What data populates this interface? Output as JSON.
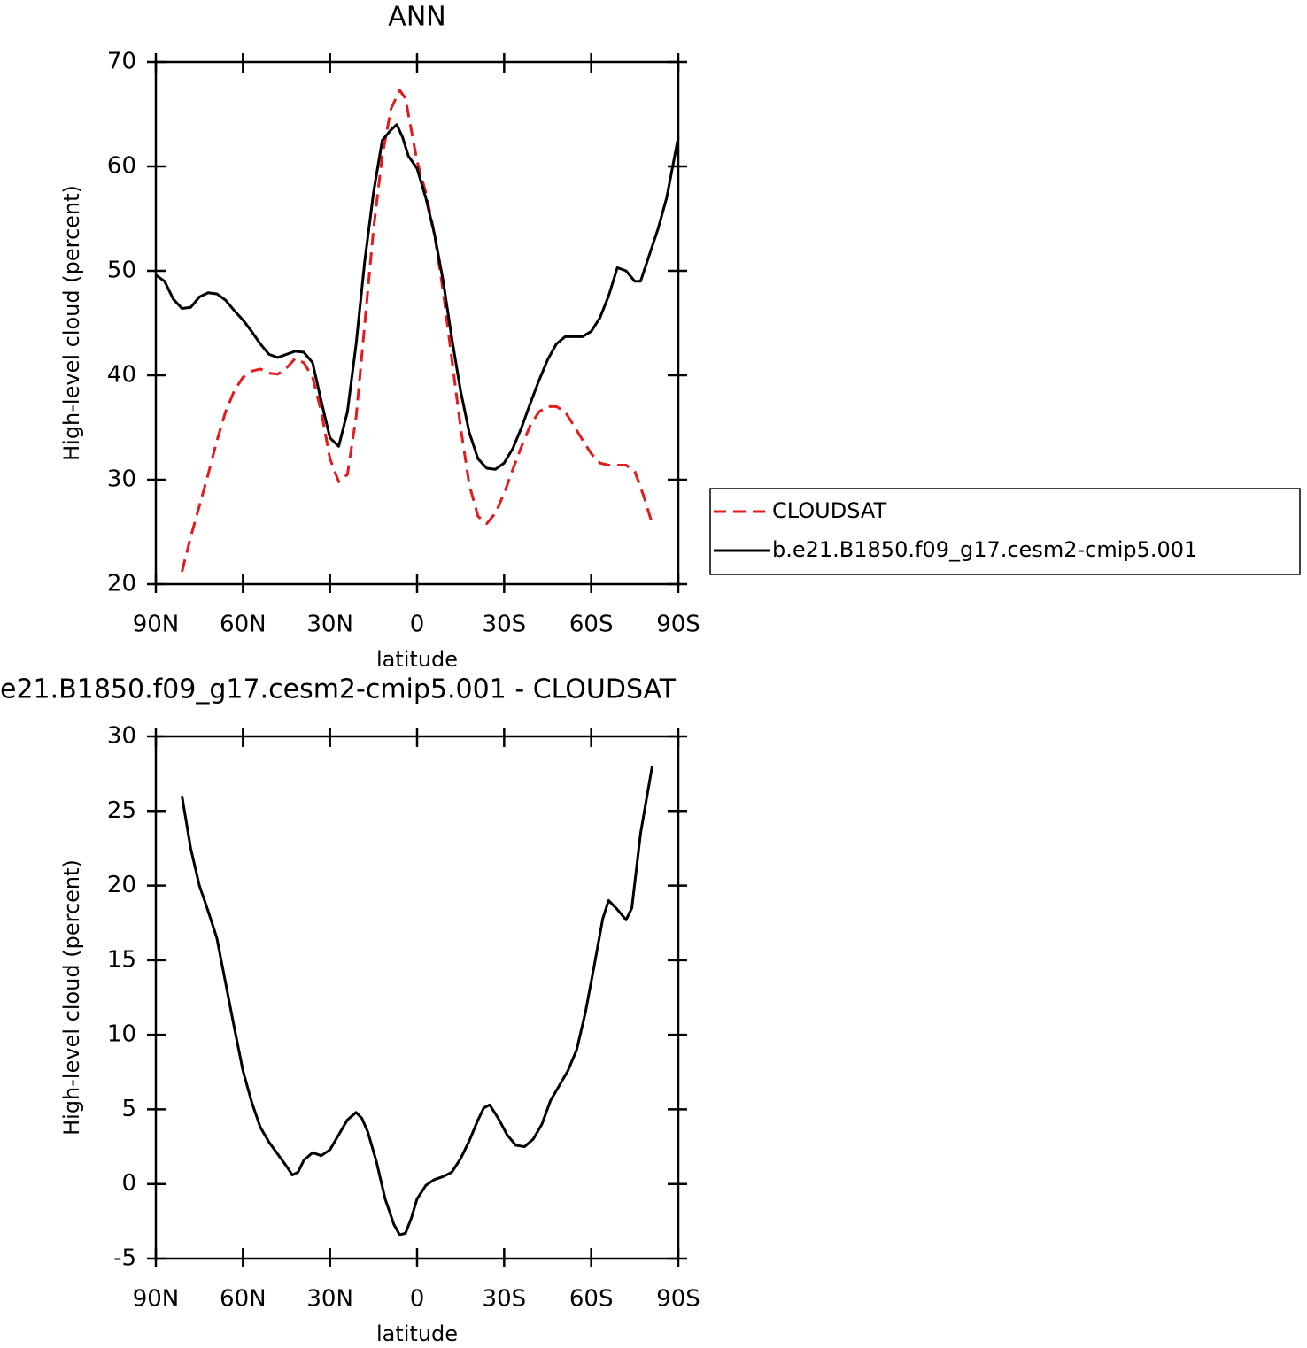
{
  "chart_data": [
    {
      "type": "line",
      "title": "ANN",
      "xlabel": "latitude",
      "ylabel": "High-level cloud (percent)",
      "xlim": [
        90,
        -90
      ],
      "xticks": [
        {
          "value": 90,
          "label": "90N"
        },
        {
          "value": 60,
          "label": "60N"
        },
        {
          "value": 30,
          "label": "30N"
        },
        0,
        {
          "value": -30,
          "label": "30S"
        },
        {
          "value": -60,
          "label": "60S"
        },
        {
          "value": -90,
          "label": "90S"
        }
      ],
      "ylim": [
        20,
        70
      ],
      "yticks": [
        20,
        30,
        40,
        50,
        60,
        70
      ],
      "legend": "outside-right",
      "series": [
        {
          "name": "CLOUDSAT",
          "color": "#e41a1c",
          "linestyle": "dashed",
          "x": [
            81,
            78,
            75,
            72,
            69,
            66,
            63,
            60,
            57,
            54,
            51,
            48,
            45,
            42,
            39,
            36,
            33,
            30,
            27,
            24,
            21,
            18,
            15,
            12,
            9,
            6,
            4,
            2,
            0,
            -3,
            -6,
            -9,
            -12,
            -15,
            -18,
            -21,
            -24,
            -27,
            -30,
            -33,
            -36,
            -39,
            -42,
            -45,
            -48,
            -51,
            -54,
            -57,
            -60,
            -63,
            -66,
            -69,
            -72,
            -75,
            -78,
            -81
          ],
          "values": [
            21.2,
            24.5,
            27.5,
            30.5,
            33.7,
            36.5,
            38.5,
            39.8,
            40.4,
            40.6,
            40.2,
            40.1,
            40.7,
            41.6,
            41.2,
            39.8,
            36.5,
            32.0,
            29.8,
            30.5,
            36.0,
            45.0,
            54.0,
            61.0,
            65.5,
            67.3,
            66.5,
            63.5,
            60.5,
            57.5,
            53.5,
            48.0,
            41.5,
            35.0,
            29.5,
            26.5,
            25.8,
            26.8,
            28.7,
            31.0,
            33.2,
            35.2,
            36.5,
            37.0,
            37.0,
            36.5,
            35.2,
            33.8,
            32.5,
            31.6,
            31.4,
            31.4,
            31.4,
            30.8,
            28.5,
            25.8
          ]
        },
        {
          "name": "b.e21.B1850.f09_g17.cesm2-cmip5.001",
          "color": "#000000",
          "linestyle": "solid",
          "x": [
            90,
            87,
            84,
            81,
            78,
            75,
            72,
            69,
            66,
            63,
            60,
            57,
            54,
            51,
            48,
            45,
            42,
            39,
            36,
            33,
            30,
            27,
            24,
            21,
            18,
            15,
            12,
            9,
            7,
            5,
            3,
            0,
            -3,
            -6,
            -9,
            -12,
            -15,
            -18,
            -21,
            -24,
            -27,
            -30,
            -33,
            -36,
            -39,
            -42,
            -45,
            -48,
            -51,
            -54,
            -57,
            -60,
            -63,
            -66,
            -69,
            -72,
            -75,
            -77,
            -80,
            -83,
            -86,
            -90
          ],
          "values": [
            49.6,
            49.0,
            47.3,
            46.4,
            46.5,
            47.5,
            47.9,
            47.8,
            47.2,
            46.2,
            45.3,
            44.2,
            43.0,
            42.0,
            41.7,
            42.0,
            42.3,
            42.2,
            41.2,
            37.5,
            34.0,
            33.2,
            36.5,
            43.0,
            51.0,
            57.5,
            62.5,
            63.5,
            64.0,
            62.8,
            61.0,
            59.8,
            57.0,
            53.5,
            49.0,
            43.5,
            38.5,
            34.5,
            32.0,
            31.1,
            31.0,
            31.6,
            33.0,
            35.0,
            37.3,
            39.5,
            41.5,
            43.0,
            43.7,
            43.7,
            43.7,
            44.2,
            45.5,
            47.6,
            50.3,
            50.0,
            49.0,
            49.0,
            51.5,
            54.0,
            57.0,
            62.8
          ]
        }
      ]
    },
    {
      "type": "line",
      "title": "e21.B1850.f09_g17.cesm2-cmip5.001 - CLOUDSAT",
      "xlabel": "latitude",
      "ylabel": "High-level cloud (percent)",
      "xlim": [
        90,
        -90
      ],
      "xticks": [
        {
          "value": 90,
          "label": "90N"
        },
        {
          "value": 60,
          "label": "60N"
        },
        {
          "value": 30,
          "label": "30N"
        },
        0,
        {
          "value": -30,
          "label": "30S"
        },
        {
          "value": -60,
          "label": "60S"
        },
        {
          "value": -90,
          "label": "90S"
        }
      ],
      "ylim": [
        -5,
        30
      ],
      "yticks": [
        -5,
        0,
        5,
        10,
        15,
        20,
        25,
        30
      ],
      "series": [
        {
          "color": "#000000",
          "linestyle": "solid",
          "x": [
            81,
            78,
            75,
            72,
            69,
            66,
            63,
            60,
            57,
            54,
            51,
            48,
            45,
            43,
            41,
            39,
            36,
            33,
            30,
            27,
            24,
            21,
            19,
            17,
            14,
            11,
            8,
            6,
            4,
            2,
            0,
            -3,
            -6,
            -9,
            -12,
            -15,
            -18,
            -21,
            -23,
            -25,
            -28,
            -31,
            -34,
            -37,
            -40,
            -43,
            -46,
            -49,
            -52,
            -55,
            -58,
            -61,
            -64,
            -66,
            -69,
            -72,
            -74,
            -77,
            -81
          ],
          "values": [
            26.0,
            22.5,
            20.0,
            18.3,
            16.5,
            13.5,
            10.5,
            7.6,
            5.5,
            3.8,
            2.8,
            2.0,
            1.2,
            0.6,
            0.8,
            1.6,
            2.1,
            1.9,
            2.3,
            3.3,
            4.3,
            4.8,
            4.4,
            3.5,
            1.5,
            -1.0,
            -2.7,
            -3.4,
            -3.3,
            -2.3,
            -1.0,
            -0.1,
            0.3,
            0.5,
            0.8,
            1.7,
            2.9,
            4.3,
            5.1,
            5.3,
            4.4,
            3.3,
            2.6,
            2.5,
            3.0,
            4.0,
            5.6,
            6.6,
            7.6,
            9.0,
            11.5,
            14.6,
            17.8,
            19.0,
            18.4,
            17.7,
            18.5,
            23.5,
            28.0
          ]
        }
      ]
    }
  ]
}
